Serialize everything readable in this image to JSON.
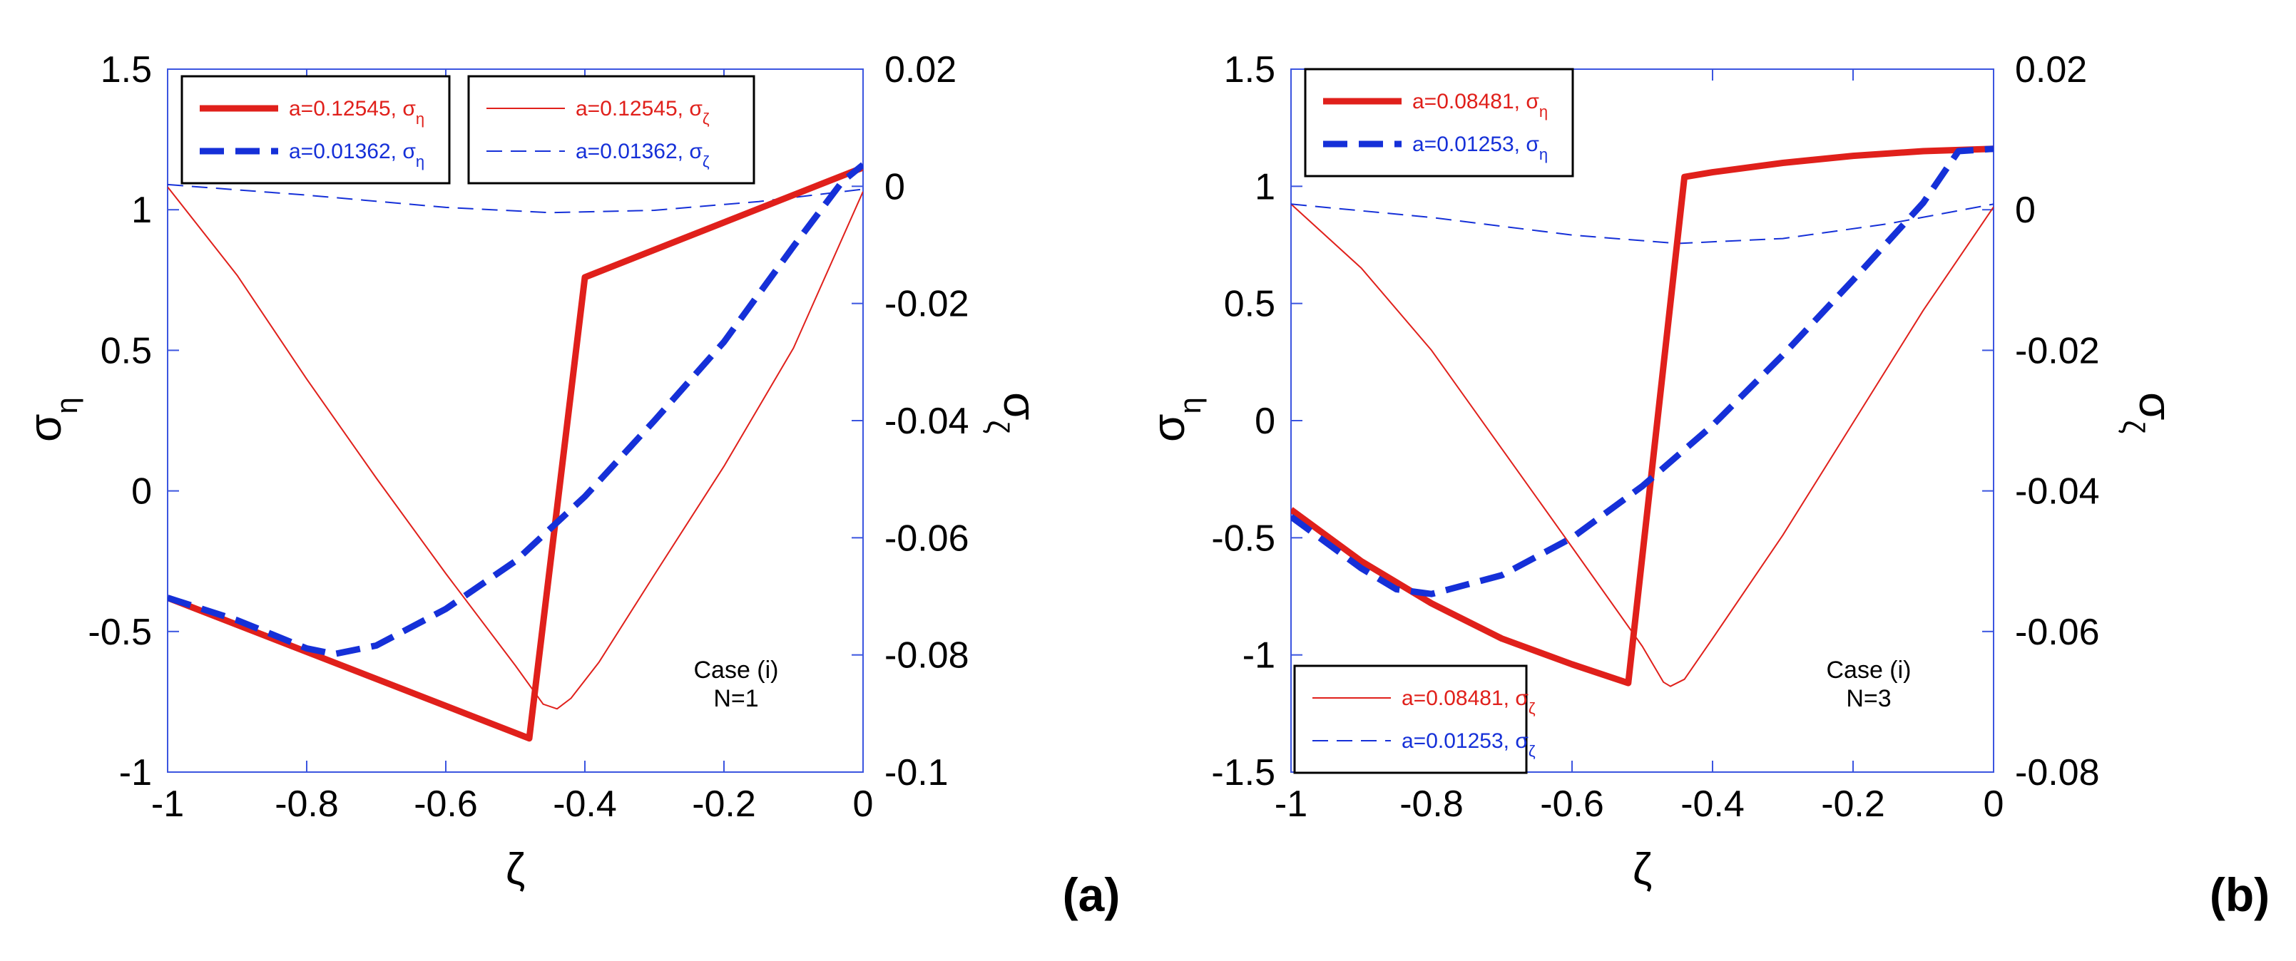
{
  "chart_data": [
    {
      "type": "line",
      "panel_label": "(a)",
      "xlabel": "ζ",
      "ylabel": "σ",
      "ylabel_sub": "η",
      "y2label": "σ",
      "y2label_sub": "ζ",
      "xlim": [
        -1,
        0
      ],
      "ylim": [
        -1,
        1.5
      ],
      "y2lim": [
        -0.1,
        0.02
      ],
      "x_ticks": [
        -1,
        -0.8,
        -0.6,
        -0.4,
        -0.2,
        0
      ],
      "x_tick_labels": [
        "-1",
        "-0.8",
        "-0.6",
        "-0.4",
        "-0.2",
        "0"
      ],
      "y_ticks": [
        -1,
        -0.5,
        0,
        0.5,
        1,
        1.5
      ],
      "y_tick_labels": [
        "-1",
        "-0.5",
        "0",
        "0.5",
        "1",
        "1.5"
      ],
      "y2_ticks": [
        -0.1,
        -0.08,
        -0.06,
        -0.04,
        -0.02,
        0,
        0.02
      ],
      "y2_tick_labels": [
        "-0.1",
        "-0.08",
        "-0.06",
        "-0.04",
        "-0.02",
        "0",
        "0.02"
      ],
      "annotation": [
        "Case (i)",
        "N=1"
      ],
      "legends": [
        {
          "position": "top-left",
          "entries": [
            {
              "text": "a=0.12545, σ",
              "sub": "η",
              "color": "#e0201b",
              "style": "solid-thick"
            },
            {
              "text": "a=0.01362, σ",
              "sub": "η",
              "color": "#1530d8",
              "style": "dashed-thick"
            }
          ]
        },
        {
          "position": "top-center",
          "entries": [
            {
              "text": "a=0.12545, σ",
              "sub": "ζ",
              "color": "#e0201b",
              "style": "solid-thin"
            },
            {
              "text": "a=0.01362, σ",
              "sub": "ζ",
              "color": "#1530d8",
              "style": "dashed-thin"
            }
          ]
        }
      ],
      "series": [
        {
          "name": "a=0.12545, σ_η",
          "axis": "left",
          "color": "#e0201b",
          "style": "solid-thick",
          "x": [
            -1,
            -0.48,
            -0.4,
            0
          ],
          "y": [
            -0.38,
            -0.88,
            0.76,
            1.15
          ]
        },
        {
          "name": "a=0.01362, σ_η",
          "axis": "left",
          "color": "#1530d8",
          "style": "dashed-thick",
          "x": [
            -1,
            -0.9,
            -0.8,
            -0.76,
            -0.7,
            -0.6,
            -0.5,
            -0.4,
            -0.3,
            -0.2,
            -0.1,
            -0.03,
            0
          ],
          "y": [
            -0.38,
            -0.46,
            -0.56,
            -0.58,
            -0.55,
            -0.42,
            -0.25,
            -0.02,
            0.25,
            0.53,
            0.87,
            1.1,
            1.16
          ]
        },
        {
          "name": "a=0.12545, σ_ζ",
          "axis": "right",
          "color": "#e0201b",
          "style": "solid-thin",
          "x": [
            -1,
            -0.9,
            -0.8,
            -0.7,
            -0.6,
            -0.5,
            -0.46,
            -0.44,
            -0.42,
            -0.38,
            -0.3,
            -0.2,
            -0.1,
            0
          ],
          "y": [
            -0.0001,
            -0.0152,
            -0.0329,
            -0.0498,
            -0.0661,
            -0.0818,
            -0.0884,
            -0.0892,
            -0.0874,
            -0.0813,
            -0.0663,
            -0.0478,
            -0.0276,
            -0.0009
          ]
        },
        {
          "name": "a=0.01362, σ_ζ",
          "axis": "right",
          "color": "#1530d8",
          "style": "dashed-thin",
          "x": [
            -1,
            -0.8,
            -0.6,
            -0.45,
            -0.3,
            -0.15,
            0
          ],
          "y": [
            0.0003,
            -0.0015,
            -0.0036,
            -0.0045,
            -0.0041,
            -0.0026,
            -0.0005
          ]
        }
      ]
    },
    {
      "type": "line",
      "panel_label": "(b)",
      "xlabel": "ζ",
      "ylabel": "σ",
      "ylabel_sub": "η",
      "y2label": "σ",
      "y2label_sub": "ζ",
      "xlim": [
        -1,
        0
      ],
      "ylim": [
        -1.5,
        1.5
      ],
      "y2lim": [
        -0.08,
        0.02
      ],
      "x_ticks": [
        -1,
        -0.8,
        -0.6,
        -0.4,
        -0.2,
        0
      ],
      "x_tick_labels": [
        "-1",
        "-0.8",
        "-0.6",
        "-0.4",
        "-0.2",
        "0"
      ],
      "y_ticks": [
        -1.5,
        -1,
        -0.5,
        0,
        0.5,
        1,
        1.5
      ],
      "y_tick_labels": [
        "-1.5",
        "-1",
        "-0.5",
        "0",
        "0.5",
        "1",
        "1.5"
      ],
      "y2_ticks": [
        -0.08,
        -0.06,
        -0.04,
        -0.02,
        0,
        0.02
      ],
      "y2_tick_labels": [
        "-0.08",
        "-0.06",
        "-0.04",
        "-0.02",
        "0",
        "0.02"
      ],
      "annotation": [
        "Case (i)",
        "N=3"
      ],
      "legends": [
        {
          "position": "top-left",
          "entries": [
            {
              "text": "a=0.08481, σ",
              "sub": "η",
              "color": "#e0201b",
              "style": "solid-thick"
            },
            {
              "text": "a=0.01253, σ",
              "sub": "η",
              "color": "#1530d8",
              "style": "dashed-thick"
            }
          ]
        },
        {
          "position": "bottom-left",
          "entries": [
            {
              "text": "a=0.08481, σ",
              "sub": "ζ",
              "color": "#e0201b",
              "style": "solid-thin"
            },
            {
              "text": "a=0.01253, σ",
              "sub": "ζ",
              "color": "#1530d8",
              "style": "dashed-thin"
            }
          ]
        }
      ],
      "series": [
        {
          "name": "a=0.08481, σ_η",
          "axis": "left",
          "color": "#e0201b",
          "style": "solid-thick",
          "x": [
            -1,
            -0.9,
            -0.8,
            -0.7,
            -0.6,
            -0.52,
            -0.44,
            -0.4,
            -0.3,
            -0.2,
            -0.1,
            0
          ],
          "y": [
            -0.38,
            -0.6,
            -0.78,
            -0.93,
            -1.04,
            -1.12,
            1.04,
            1.06,
            1.1,
            1.13,
            1.15,
            1.16
          ]
        },
        {
          "name": "a=0.01253, σ_η",
          "axis": "left",
          "color": "#1530d8",
          "style": "dashed-thick",
          "x": [
            -1,
            -0.9,
            -0.85,
            -0.8,
            -0.7,
            -0.6,
            -0.5,
            -0.4,
            -0.3,
            -0.2,
            -0.1,
            -0.05,
            0
          ],
          "y": [
            -0.41,
            -0.63,
            -0.72,
            -0.74,
            -0.66,
            -0.5,
            -0.28,
            -0.02,
            0.28,
            0.6,
            0.93,
            1.15,
            1.16
          ]
        },
        {
          "name": "a=0.08481, σ_ζ",
          "axis": "right",
          "color": "#e0201b",
          "style": "solid-thin",
          "x": [
            -1,
            -0.9,
            -0.8,
            -0.7,
            -0.6,
            -0.5,
            -0.47,
            -0.46,
            -0.44,
            -0.4,
            -0.3,
            -0.2,
            -0.1,
            0
          ],
          "y": [
            0.0008,
            -0.0083,
            -0.02,
            -0.034,
            -0.048,
            -0.0621,
            -0.0672,
            -0.0678,
            -0.0668,
            -0.061,
            -0.0463,
            -0.0303,
            -0.0143,
            0.0004
          ]
        },
        {
          "name": "a=0.01253, σ_ζ",
          "axis": "right",
          "color": "#1530d8",
          "style": "dashed-thin",
          "x": [
            -1,
            -0.8,
            -0.6,
            -0.45,
            -0.3,
            -0.15,
            0
          ],
          "y": [
            0.0008,
            -0.0011,
            -0.0036,
            -0.0048,
            -0.0041,
            -0.002,
            0.0008
          ]
        }
      ]
    }
  ]
}
